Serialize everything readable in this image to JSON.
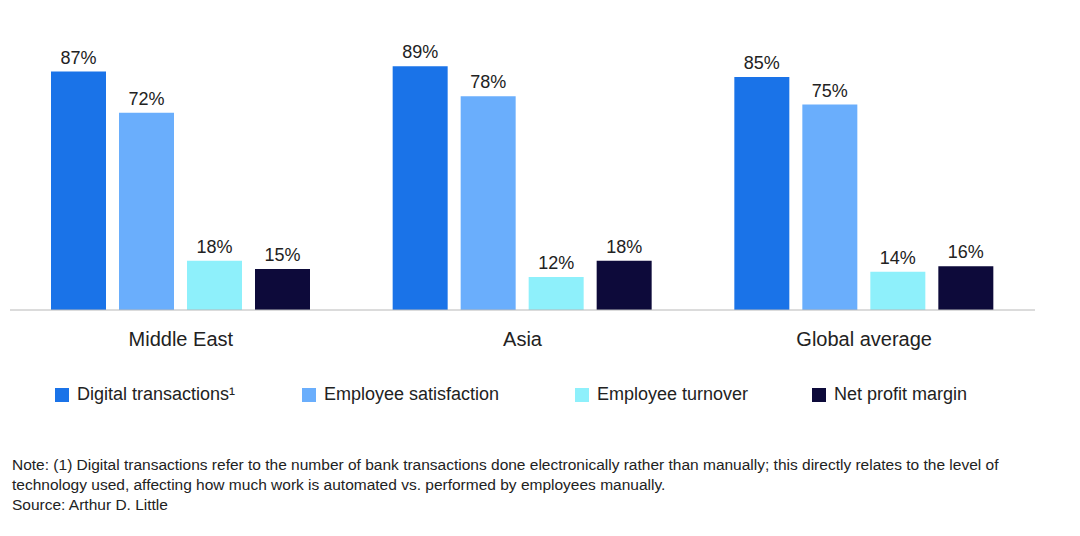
{
  "chart_data": {
    "type": "bar",
    "categories": [
      "Middle East",
      "Asia",
      "Global average"
    ],
    "series": [
      {
        "name": "Digital transactions¹",
        "color": "#1a73e8",
        "values": [
          87,
          89,
          85
        ],
        "value_labels": [
          "87%",
          "89%",
          "85%"
        ]
      },
      {
        "name": "Employee satisfaction",
        "color": "#6aaefc",
        "values": [
          72,
          78,
          75
        ],
        "value_labels": [
          "72%",
          "78%",
          "75%"
        ]
      },
      {
        "name": "Employee turnover",
        "color": "#8ef0fb",
        "values": [
          18,
          12,
          14
        ],
        "value_labels": [
          "18%",
          "12%",
          "14%"
        ]
      },
      {
        "name": "Net profit margin",
        "color": "#0d0a3a",
        "values": [
          15,
          18,
          16
        ],
        "value_labels": [
          "15%",
          "18%",
          "16%"
        ]
      }
    ],
    "ylim": [
      0,
      100
    ],
    "data_labels": true,
    "tick_labels": "x",
    "grid": false,
    "legend": "bottom",
    "annotations": [
      "Note: (1) Digital transactions refer to the number of bank transactions done electronically rather than manually; this directly relates to the level of technology used, affecting how much work is automated vs. performed by employees manually.",
      "Source: Arthur D. Little"
    ]
  }
}
